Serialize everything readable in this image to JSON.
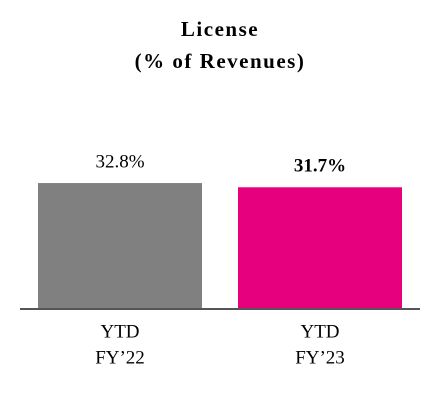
{
  "chart_data": {
    "type": "bar",
    "title": "License",
    "subtitle": "(% of Revenues)",
    "categories": [
      [
        "YTD",
        "FY’22"
      ],
      [
        "YTD",
        "FY’23"
      ]
    ],
    "values": [
      32.8,
      31.7
    ],
    "value_labels": [
      "32.8%",
      "31.7%"
    ],
    "colors": [
      "#808080",
      "#e6007e"
    ],
    "bold_labels": [
      false,
      true
    ],
    "ylim": [
      0,
      40
    ]
  }
}
